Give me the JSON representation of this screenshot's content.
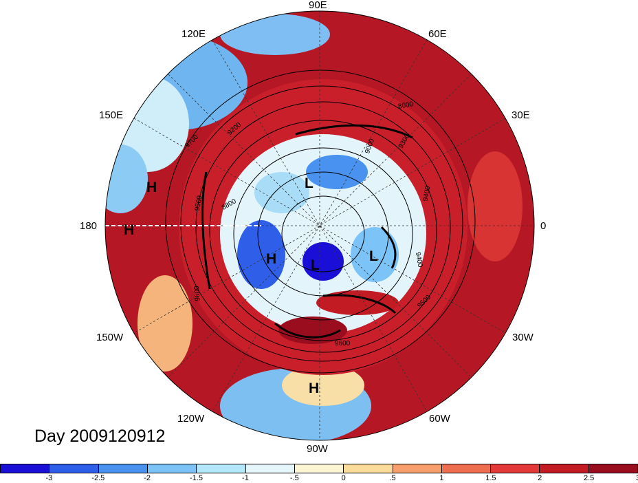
{
  "title": "Day 2009120912",
  "longitude_labels": {
    "top": "90E",
    "upper_left": "120E",
    "upper_right": "60E",
    "left_upper": "150E",
    "right_upper": "30E",
    "left": "180",
    "right": "0",
    "left_lower": "150W",
    "right_lower": "30W",
    "lower_left": "120W",
    "lower_right": "60W",
    "bottom": "90W"
  },
  "pressure_centers": [
    "H",
    "H",
    "L",
    "H",
    "L",
    "L",
    "H"
  ],
  "contour_labels": [
    "9600",
    "9400",
    "9200",
    "9000",
    "8800",
    "8600",
    "9700",
    "9500",
    "9300",
    "9400",
    "9600",
    "9500"
  ],
  "colorbar": {
    "colors": [
      "#1a0fd6",
      "#2f5fe8",
      "#4a92ef",
      "#7cc3f7",
      "#b5e7fb",
      "#e6f7fb",
      "#fdf6d2",
      "#fbdc9a",
      "#f7a06e",
      "#ef6e52",
      "#e3393a",
      "#c21b24",
      "#9a0d1f"
    ],
    "tick_labels": [
      "-3",
      "-2.5",
      "-2",
      "-1.5",
      "-1",
      "-.5",
      "0",
      ".5",
      "1",
      "1.5",
      "2",
      "2.5",
      "3"
    ]
  }
}
